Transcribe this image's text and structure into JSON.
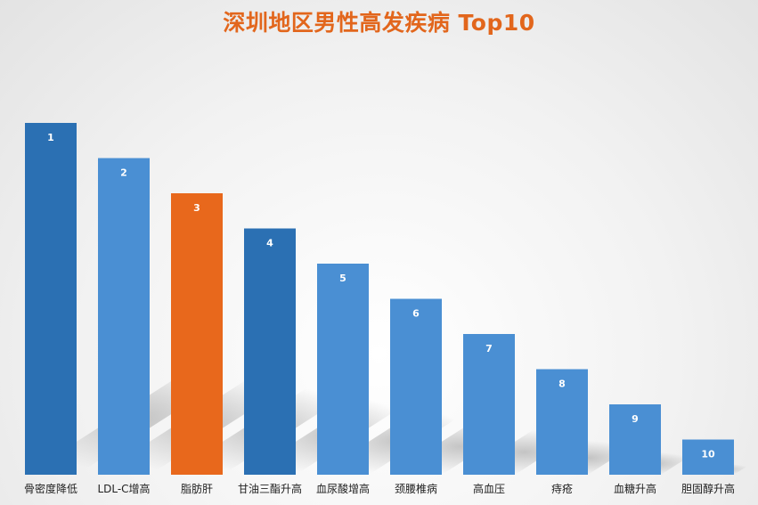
{
  "chart_data": {
    "type": "bar",
    "title": "深圳地区男性高发疾病 Top10",
    "categories": [
      "骨密度降低",
      "LDL-C增高",
      "脂肪肝",
      "甘油三酯升高",
      "血尿酸增高",
      "颈腰椎病",
      "高血压",
      "痔疮",
      "血糖升高",
      "胆固醇升高"
    ],
    "bar_labels": [
      "1",
      "2",
      "3",
      "4",
      "5",
      "6",
      "7",
      "8",
      "9",
      "10"
    ],
    "values": [
      10,
      9,
      8,
      7,
      6,
      5,
      4,
      3,
      2,
      1
    ],
    "ylim": [
      0,
      10
    ],
    "grid": false,
    "legend": "none",
    "colors": [
      "#2b70b3",
      "#4a8fd3",
      "#e8681c",
      "#2b70b3",
      "#4a8fd3",
      "#4a8fd3",
      "#4a8fd3",
      "#4a8fd3",
      "#4a8fd3",
      "#4a8fd3"
    ]
  }
}
